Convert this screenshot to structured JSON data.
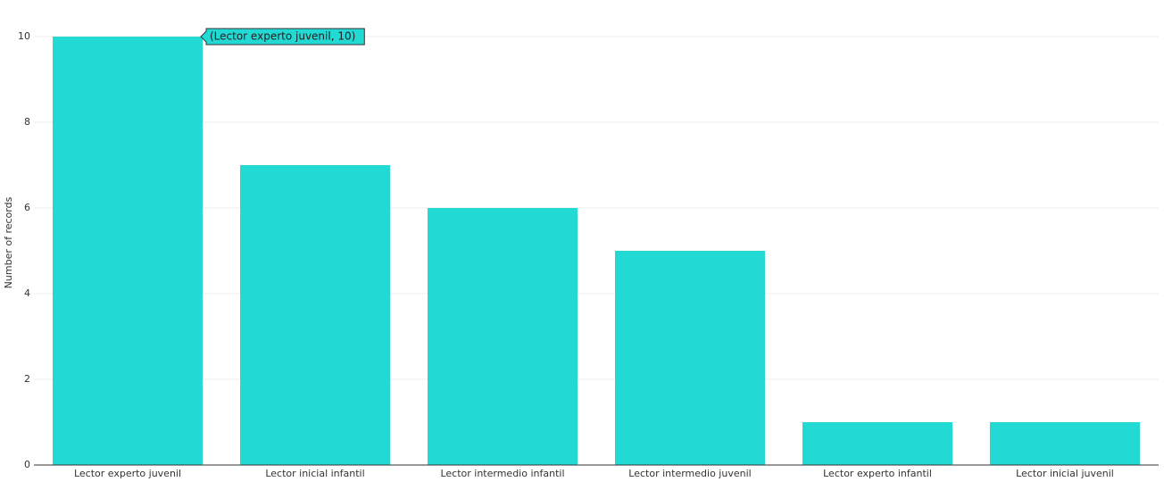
{
  "chart_data": {
    "type": "bar",
    "y_label": "Number of records",
    "categories": [
      "Lector experto juvenil",
      "Lector inicial infantil",
      "Lector intermedio infantil",
      "Lector intermedio juvenil",
      "Lector experto infantil",
      "Lector inicial juvenil"
    ],
    "values": [
      10,
      7,
      6,
      5,
      1,
      1
    ],
    "color": "#22d9d4",
    "ylim": [
      0,
      10
    ],
    "yticks": [
      0,
      2,
      4,
      6,
      8,
      10
    ],
    "grid": true,
    "annotation": "(Lector experto juvenil, 10)"
  }
}
